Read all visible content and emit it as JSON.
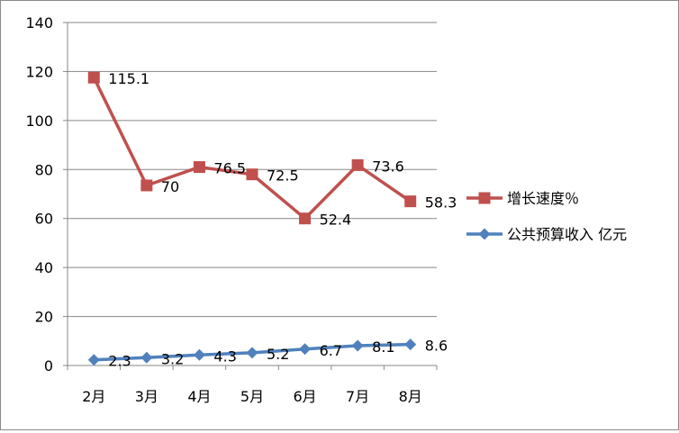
{
  "chart_data": {
    "type": "line",
    "categories": [
      "2月",
      "3月",
      "4月",
      "5月",
      "6月",
      "7月",
      "8月"
    ],
    "ylim": [
      0,
      140
    ],
    "yticks": [
      0,
      20,
      40,
      60,
      80,
      100,
      120,
      140
    ],
    "grid": true,
    "legend_position": "right",
    "series": [
      {
        "name": "增长速度％",
        "color": "#C0504D",
        "marker": "square",
        "values": [
          117.5,
          73.5,
          81,
          78,
          60,
          81.8,
          67
        ],
        "labels": [
          "115.1",
          "70",
          "76.5",
          "72.5",
          "52.4",
          "73.6",
          "58.3"
        ]
      },
      {
        "name": "公共预算收入 亿元",
        "color": "#4F81BD",
        "marker": "diamond",
        "values": [
          2.3,
          3.2,
          4.3,
          5.2,
          6.7,
          8.1,
          8.6
        ],
        "labels": [
          "2.3",
          "3.2",
          "4.3",
          "5.2",
          "6.7",
          "8.1",
          "8.6"
        ]
      }
    ]
  }
}
